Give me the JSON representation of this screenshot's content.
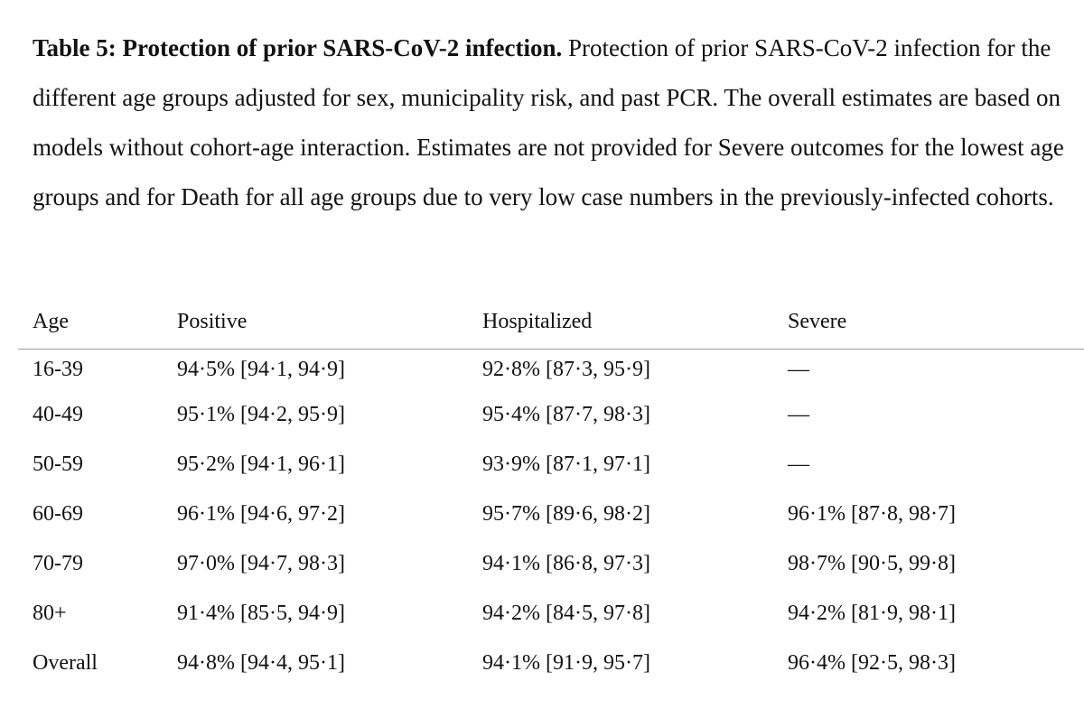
{
  "caption": {
    "title": "Table 5: Protection of prior SARS-CoV-2 infection.",
    "text": " Protection of prior SARS-CoV-2 infection for the different age groups adjusted for sex, municipality risk, and past PCR. The overall estimates are based on models without cohort-age interaction. Estimates are not provided for Severe outcomes for the lowest age groups and for Death for all age groups due to very low case numbers in the previously-infected cohorts."
  },
  "table": {
    "headers": [
      "Age",
      "Positive",
      "Hospitalized",
      "Severe"
    ],
    "rows": [
      [
        "16-39",
        "94·5% [94·1, 94·9]",
        "92·8% [87·3, 95·9]",
        "—"
      ],
      [
        "40-49",
        "95·1% [94·2, 95·9]",
        "95·4% [87·7, 98·3]",
        "—"
      ],
      [
        "50-59",
        "95·2% [94·1, 96·1]",
        "93·9% [87·1, 97·1]",
        "—"
      ],
      [
        "60-69",
        "96·1% [94·6, 97·2]",
        "95·7% [89·6, 98·2]",
        "96·1% [87·8, 98·7]"
      ],
      [
        "70-79",
        "97·0% [94·7, 98·3]",
        "94·1% [86·8, 97·3]",
        "98·7% [90·5, 99·8]"
      ],
      [
        "80+",
        "91·4% [85·5, 94·9]",
        "94·2% [84·5, 97·8]",
        "94·2% [81·9, 98·1]"
      ],
      [
        "Overall",
        "94·8% [94·4, 95·1]",
        "94·1% [91·9, 95·7]",
        "96·4% [92·5, 98·3]"
      ]
    ]
  }
}
